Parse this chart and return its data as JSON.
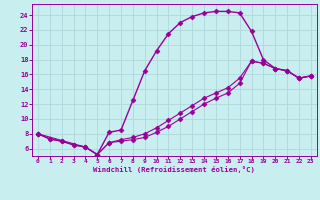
{
  "xlabel": "Windchill (Refroidissement éolien,°C)",
  "bg_color": "#c8eef0",
  "grid_color": "#b0d8dc",
  "line_color": "#990099",
  "xlim": [
    -0.5,
    23.5
  ],
  "ylim": [
    5.0,
    25.5
  ],
  "yticks": [
    6,
    8,
    10,
    12,
    14,
    16,
    18,
    20,
    22,
    24
  ],
  "xticks": [
    0,
    1,
    2,
    3,
    4,
    5,
    6,
    7,
    8,
    9,
    10,
    11,
    12,
    13,
    14,
    15,
    16,
    17,
    18,
    19,
    20,
    21,
    22,
    23
  ],
  "curve1_x": [
    0,
    1,
    2,
    3,
    4,
    5,
    6,
    7,
    8,
    9,
    10,
    11,
    12,
    13,
    14,
    15,
    16,
    17,
    18,
    19,
    20,
    21,
    22,
    23
  ],
  "curve1_y": [
    8.0,
    7.3,
    7.0,
    6.5,
    6.2,
    5.2,
    8.2,
    8.5,
    12.5,
    16.5,
    19.2,
    21.5,
    23.0,
    23.8,
    24.3,
    24.5,
    24.5,
    24.3,
    21.8,
    18.0,
    16.8,
    16.5,
    15.5,
    15.8
  ],
  "curve2_x": [
    0,
    1,
    2,
    3,
    4,
    5,
    6,
    7,
    8,
    9,
    10,
    11,
    12,
    13,
    14,
    15,
    16,
    17,
    18,
    19,
    20,
    21,
    22,
    23
  ],
  "curve2_y": [
    8.0,
    7.3,
    7.0,
    6.5,
    6.2,
    5.2,
    6.8,
    7.2,
    7.5,
    8.0,
    8.8,
    9.8,
    10.8,
    11.8,
    12.8,
    13.5,
    14.2,
    15.5,
    17.8,
    17.5,
    16.8,
    16.5,
    15.5,
    15.8
  ],
  "curve3_x": [
    0,
    4,
    5,
    6,
    7,
    8,
    9,
    10,
    11,
    12,
    13,
    14,
    15,
    16,
    17,
    18,
    19,
    20,
    21,
    22,
    23
  ],
  "curve3_y": [
    8.0,
    6.2,
    5.2,
    6.8,
    7.0,
    7.2,
    7.5,
    8.2,
    9.0,
    10.0,
    11.0,
    12.0,
    12.8,
    13.5,
    14.8,
    17.8,
    17.5,
    16.8,
    16.5,
    15.5,
    15.8
  ]
}
